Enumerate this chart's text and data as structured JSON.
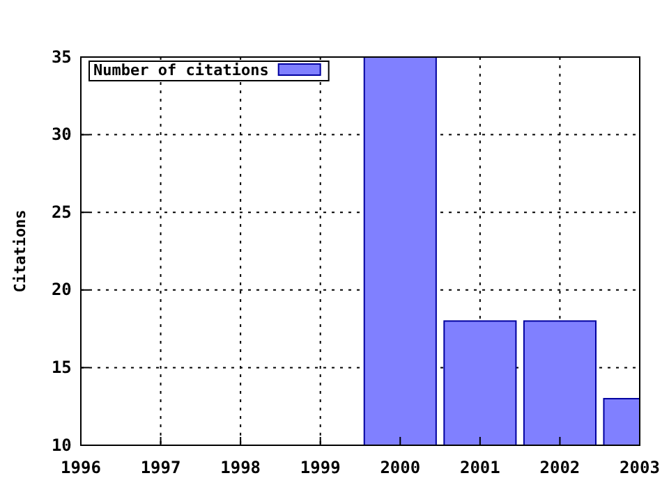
{
  "chart_data": {
    "type": "bar",
    "ylabel": "Citations",
    "x": [
      2000,
      2001,
      2002,
      2003
    ],
    "series": [
      {
        "name": "Number of citations",
        "color": "#8080ff",
        "values": [
          35,
          18,
          18,
          13
        ]
      }
    ],
    "xlim": [
      1996,
      2003
    ],
    "xticks": [
      1996,
      1997,
      1998,
      1999,
      2000,
      2001,
      2002,
      2003
    ],
    "ylim": [
      10,
      35
    ],
    "yticks": [
      10,
      15,
      20,
      25,
      30,
      35
    ],
    "grid": true,
    "legend": "top left"
  }
}
